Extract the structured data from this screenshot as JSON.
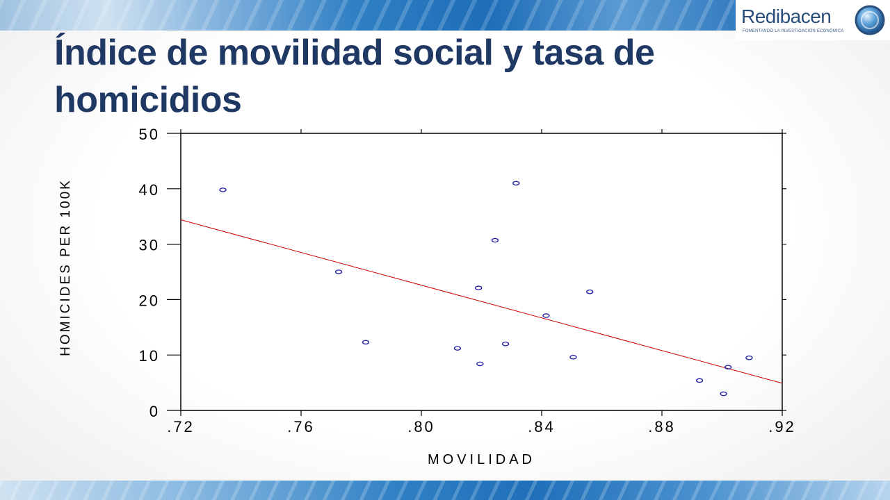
{
  "slide": {
    "title": "Índice de movilidad social y tasa de homicidios"
  },
  "logo": {
    "name": "Redibacen",
    "tagline": "FOMENTANDO LA INVESTIGACIÓN ECONÓMICA"
  },
  "colors": {
    "title": "#1f3864",
    "fit_line": "#cc0000",
    "points": "#1a1aa6",
    "axis": "#000000"
  },
  "chart_data": {
    "type": "scatter",
    "title": "",
    "xlabel": "MOVILIDAD",
    "ylabel": "HOMICIDES PER 100K",
    "xlim": [
      0.72,
      0.92
    ],
    "ylim": [
      0,
      50
    ],
    "x_ticks": [
      0.72,
      0.76,
      0.8,
      0.84,
      0.88,
      0.92
    ],
    "x_tick_labels": [
      ".72",
      ".76",
      ".80",
      ".84",
      ".88",
      ".92"
    ],
    "y_ticks": [
      0,
      10,
      20,
      30,
      40,
      50
    ],
    "y_tick_labels": [
      "0",
      "10",
      "20",
      "30",
      "40",
      "50"
    ],
    "points": [
      {
        "x": 0.734,
        "y": 39.8
      },
      {
        "x": 0.7725,
        "y": 25.0
      },
      {
        "x": 0.7815,
        "y": 12.3
      },
      {
        "x": 0.812,
        "y": 11.2
      },
      {
        "x": 0.819,
        "y": 22.1
      },
      {
        "x": 0.8195,
        "y": 8.4
      },
      {
        "x": 0.8245,
        "y": 30.7
      },
      {
        "x": 0.828,
        "y": 12.0
      },
      {
        "x": 0.8315,
        "y": 41.0
      },
      {
        "x": 0.8415,
        "y": 17.1
      },
      {
        "x": 0.8505,
        "y": 9.6
      },
      {
        "x": 0.856,
        "y": 21.4
      },
      {
        "x": 0.8925,
        "y": 5.4
      },
      {
        "x": 0.9005,
        "y": 3.0
      },
      {
        "x": 0.902,
        "y": 7.8
      },
      {
        "x": 0.909,
        "y": 9.5
      }
    ],
    "fit_line": {
      "x": [
        0.72,
        0.92
      ],
      "y": [
        34.4,
        4.9
      ]
    },
    "grid": false,
    "legend": "none"
  }
}
